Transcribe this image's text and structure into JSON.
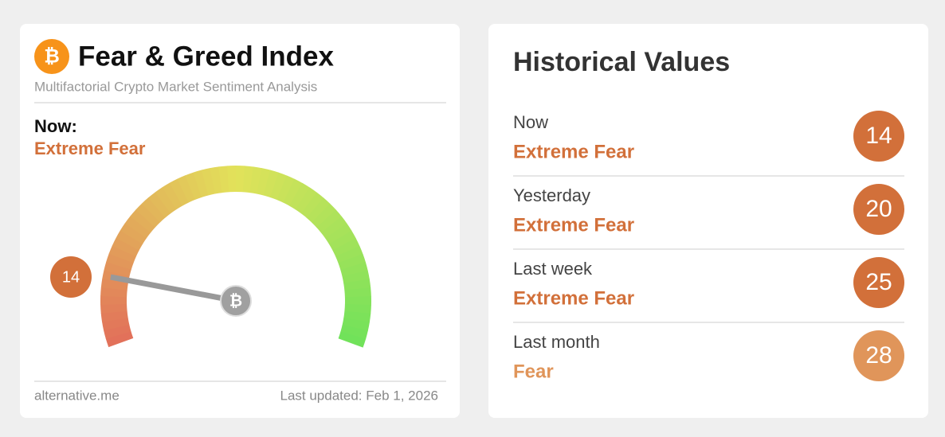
{
  "widget": {
    "title": "Fear & Greed Index",
    "subtitle": "Multifactorial Crypto Market Sentiment Analysis",
    "now_label": "Now:",
    "now_class": "Extreme Fear",
    "now_color": "#d2703a",
    "value": 14,
    "range": [
      0,
      100
    ],
    "footer_source": "alternative.me",
    "footer_updated": "Last updated: Feb 1, 2026"
  },
  "history": {
    "title": "Historical Values",
    "rows": [
      {
        "label": "Now",
        "class": "Extreme Fear",
        "value": 14,
        "color": "#d2703a"
      },
      {
        "label": "Yesterday",
        "class": "Extreme Fear",
        "value": 20,
        "color": "#d2703a"
      },
      {
        "label": "Last week",
        "class": "Extreme Fear",
        "value": 25,
        "color": "#d2703a"
      },
      {
        "label": "Last month",
        "class": "Fear",
        "value": 28,
        "color": "#e0955a"
      }
    ]
  }
}
